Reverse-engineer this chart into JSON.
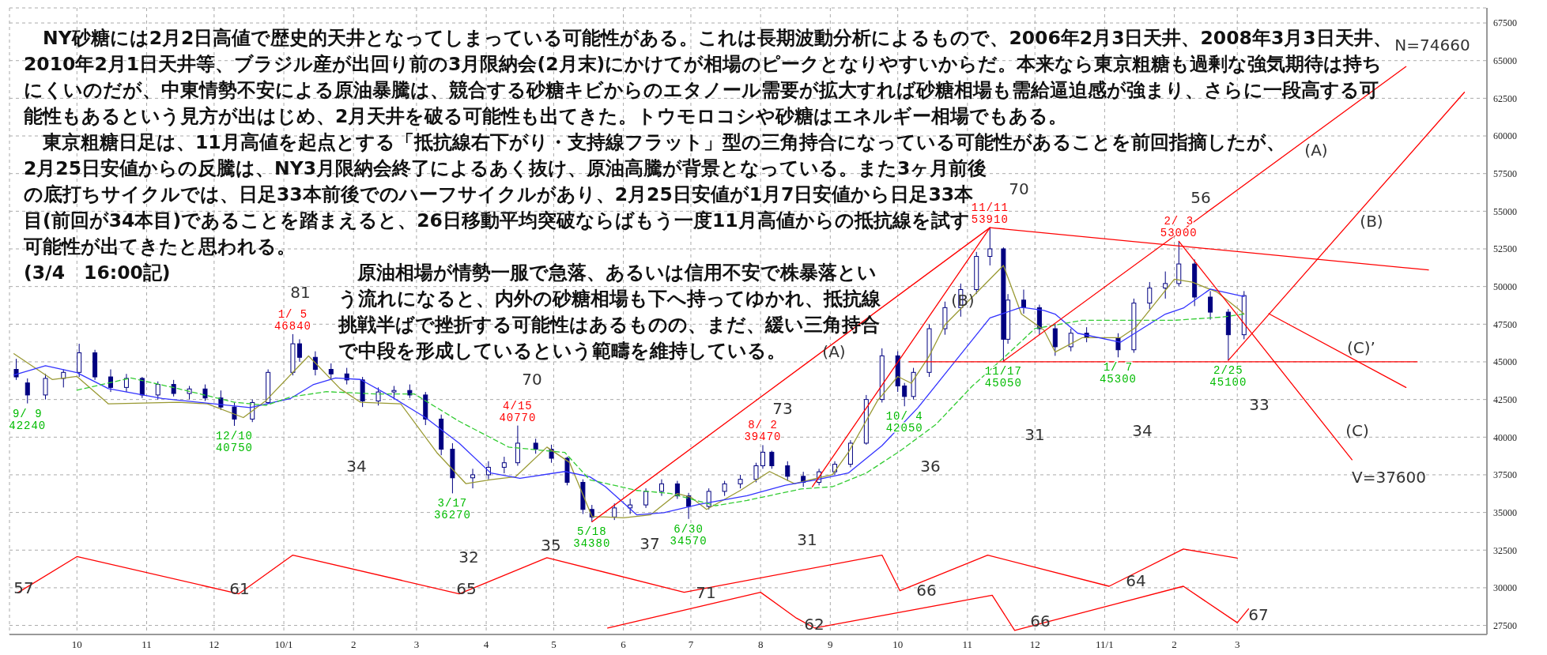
{
  "chart_data": {
    "type": "candlestick",
    "color": "#000080",
    "x": [
      "2009-09-04",
      "2009-09-09",
      "2009-09-17",
      "2009-09-25",
      "2009-10-02",
      "2009-10-09",
      "2009-10-16",
      "2009-10-23",
      "2009-10-30",
      "2009-11-06",
      "2009-11-13",
      "2009-11-20",
      "2009-11-27",
      "2009-12-04",
      "2009-12-10",
      "2009-12-18",
      "2009-12-25",
      "2010-01-05",
      "2010-01-08",
      "2010-01-15",
      "2010-01-22",
      "2010-01-29",
      "2010-02-05",
      "2010-02-12",
      "2010-02-19",
      "2010-02-26",
      "2010-03-05",
      "2010-03-12",
      "2010-03-17",
      "2010-03-26",
      "2010-04-02",
      "2010-04-09",
      "2010-04-15",
      "2010-04-23",
      "2010-04-30",
      "2010-05-07",
      "2010-05-14",
      "2010-05-18",
      "2010-05-28",
      "2010-06-04",
      "2010-06-11",
      "2010-06-18",
      "2010-06-25",
      "2010-06-30",
      "2010-07-09",
      "2010-07-16",
      "2010-07-23",
      "2010-07-30",
      "2010-08-02",
      "2010-08-06",
      "2010-08-13",
      "2010-08-20",
      "2010-08-27",
      "2010-09-03",
      "2010-09-10",
      "2010-09-17",
      "2010-09-24",
      "2010-10-01",
      "2010-10-04",
      "2010-10-08",
      "2010-10-15",
      "2010-10-22",
      "2010-10-29",
      "2010-11-05",
      "2010-11-11",
      "2010-11-17",
      "2010-11-19",
      "2010-11-26",
      "2010-12-03",
      "2010-12-10",
      "2010-12-17",
      "2010-12-24",
      "2011-01-07",
      "2011-01-14",
      "2011-01-21",
      "2011-01-28",
      "2011-02-03",
      "2011-02-10",
      "2011-02-17",
      "2011-02-25",
      "2011-03-04"
    ],
    "ohlc": [
      [
        44500,
        45200,
        43800,
        44000
      ],
      [
        43600,
        43900,
        42240,
        42800
      ],
      [
        42800,
        44200,
        42500,
        43900
      ],
      [
        43900,
        44500,
        43300,
        44300
      ],
      [
        44300,
        46200,
        44000,
        45600
      ],
      [
        45600,
        45800,
        43800,
        44000
      ],
      [
        44000,
        44500,
        43000,
        43300
      ],
      [
        43300,
        44200,
        43000,
        43900
      ],
      [
        43900,
        44000,
        42600,
        42800
      ],
      [
        42800,
        43700,
        42500,
        43500
      ],
      [
        43500,
        43800,
        42700,
        42900
      ],
      [
        42900,
        43400,
        42500,
        43200
      ],
      [
        43200,
        43500,
        42400,
        42600
      ],
      [
        42600,
        43100,
        41800,
        42000
      ],
      [
        42000,
        42300,
        40750,
        41200
      ],
      [
        41200,
        42500,
        41000,
        42300
      ],
      [
        42300,
        44500,
        42200,
        44300
      ],
      [
        44300,
        46840,
        44100,
        46200
      ],
      [
        46200,
        46500,
        45000,
        45300
      ],
      [
        45300,
        45700,
        44100,
        44500
      ],
      [
        44500,
        44900,
        43800,
        44200
      ],
      [
        44200,
        44600,
        43500,
        43800
      ],
      [
        43800,
        44000,
        42000,
        42400
      ],
      [
        42400,
        43300,
        42100,
        43000
      ],
      [
        43000,
        43400,
        42500,
        43100
      ],
      [
        43100,
        43500,
        42600,
        42800
      ],
      [
        42800,
        43000,
        40800,
        41200
      ],
      [
        41200,
        41500,
        38800,
        39200
      ],
      [
        39200,
        39600,
        36270,
        37300
      ],
      [
        37300,
        37900,
        36600,
        37500
      ],
      [
        37500,
        38400,
        37200,
        38000
      ],
      [
        38000,
        38700,
        37600,
        38300
      ],
      [
        38300,
        40770,
        38100,
        39600
      ],
      [
        39600,
        39900,
        38900,
        39200
      ],
      [
        39200,
        39500,
        38300,
        38600
      ],
      [
        38600,
        38700,
        36800,
        37000
      ],
      [
        37000,
        37200,
        34900,
        35200
      ],
      [
        35200,
        35500,
        34380,
        34700
      ],
      [
        34700,
        35600,
        34500,
        35300
      ],
      [
        35300,
        35900,
        34900,
        35500
      ],
      [
        35500,
        36600,
        35300,
        36400
      ],
      [
        36400,
        37200,
        36100,
        36900
      ],
      [
        36900,
        37100,
        35900,
        36100
      ],
      [
        36100,
        36300,
        34570,
        35400
      ],
      [
        35400,
        36600,
        35200,
        36400
      ],
      [
        36400,
        37100,
        36100,
        36900
      ],
      [
        36900,
        37500,
        36600,
        37200
      ],
      [
        37200,
        38300,
        37000,
        38100
      ],
      [
        38100,
        39470,
        37900,
        39000
      ],
      [
        39000,
        39100,
        37900,
        38100
      ],
      [
        38100,
        38400,
        37100,
        37400
      ],
      [
        37400,
        37700,
        36700,
        37000
      ],
      [
        37000,
        37900,
        36800,
        37700
      ],
      [
        37700,
        38400,
        37500,
        38200
      ],
      [
        38200,
        39800,
        38000,
        39600
      ],
      [
        39600,
        42800,
        39500,
        42500
      ],
      [
        42500,
        45900,
        42300,
        45400
      ],
      [
        45400,
        45700,
        43000,
        43400
      ],
      [
        43400,
        43600,
        42050,
        42700
      ],
      [
        42700,
        44600,
        42500,
        44300
      ],
      [
        44300,
        47500,
        44000,
        47200
      ],
      [
        47200,
        49000,
        46800,
        48600
      ],
      [
        48600,
        50200,
        48000,
        49800
      ],
      [
        49800,
        52300,
        49500,
        52000
      ],
      [
        52000,
        53910,
        51400,
        52500
      ],
      [
        52500,
        52600,
        45050,
        46500
      ],
      [
        46500,
        49500,
        46200,
        49100
      ],
      [
        49100,
        49800,
        48200,
        48600
      ],
      [
        48600,
        48800,
        46800,
        47200
      ],
      [
        47200,
        47500,
        45400,
        46000
      ],
      [
        46000,
        47200,
        45700,
        46900
      ],
      [
        46900,
        47300,
        46300,
        46600
      ],
      [
        46600,
        46900,
        45300,
        45800
      ],
      [
        45800,
        49200,
        45600,
        48900
      ],
      [
        48900,
        50300,
        48500,
        49900
      ],
      [
        49900,
        51000,
        49200,
        50200
      ],
      [
        50200,
        53000,
        50000,
        51500
      ],
      [
        51500,
        51800,
        48700,
        49300
      ],
      [
        49300,
        49700,
        47800,
        48300
      ],
      [
        48300,
        48500,
        45100,
        46800
      ],
      [
        46800,
        49700,
        46500,
        49400
      ]
    ],
    "series": [
      {
        "type": "line",
        "color": "#999933",
        "x": [
          "2009-09-03",
          "2009-09-20",
          "2009-10-01",
          "2009-10-15",
          "2009-11-15",
          "2009-11-28",
          "2009-12-14",
          "2009-12-24",
          "2010-01-12",
          "2010-01-26",
          "2010-02-04",
          "2010-02-22",
          "2010-03-10",
          "2010-03-23",
          "2010-04-03",
          "2010-04-14",
          "2010-04-28",
          "2010-05-08",
          "2010-05-18",
          "2010-06-01",
          "2010-06-13",
          "2010-06-25",
          "2010-07-01",
          "2010-07-08",
          "2010-07-23",
          "2010-08-05",
          "2010-08-16",
          "2010-09-02",
          "2010-09-09",
          "2010-09-22",
          "2010-10-01",
          "2010-10-07",
          "2010-10-15",
          "2010-10-22",
          "2010-11-17",
          "2010-11-25",
          "2010-12-05",
          "2010-12-10",
          "2010-12-22",
          "2011-01-08",
          "2011-01-15",
          "2011-02-01",
          "2011-02-09",
          "2011-02-20",
          "2011-03-01",
          "2011-03-04"
        ],
        "values": [
          45540,
          43830,
          44030,
          42210,
          42320,
          42210,
          41300,
          42420,
          45390,
          43220,
          42320,
          42210,
          38980,
          36910,
          37170,
          37370,
          39340,
          38330,
          34740,
          34640,
          34840,
          36260,
          36010,
          35200,
          36460,
          37720,
          36910,
          37520,
          38980,
          42420,
          44030,
          43580,
          45390,
          47460,
          51400,
          48170,
          47110,
          45650,
          46600,
          46600,
          47310,
          50490,
          50290,
          49630,
          48570,
          48170
        ]
      },
      {
        "type": "line",
        "color": "#3333ff",
        "x": [
          "2009-09-03",
          "2009-09-17",
          "2009-10-01",
          "2009-10-15",
          "2009-11-08",
          "2009-12-01",
          "2009-12-17",
          "2010-01-04",
          "2010-01-14",
          "2010-01-24",
          "2010-02-04",
          "2010-02-18",
          "2010-03-05",
          "2010-03-20",
          "2010-04-03",
          "2010-04-16",
          "2010-05-06",
          "2010-05-17",
          "2010-05-24",
          "2010-06-07",
          "2010-06-19",
          "2010-07-05",
          "2010-07-26",
          "2010-08-12",
          "2010-08-26",
          "2010-09-09",
          "2010-09-24",
          "2010-10-10",
          "2010-10-26",
          "2010-11-11",
          "2010-11-25",
          "2010-12-05",
          "2010-12-10",
          "2010-12-20",
          "2011-01-08",
          "2011-01-28",
          "2011-02-05",
          "2011-02-17",
          "2011-03-04"
        ],
        "values": [
          44130,
          44740,
          44280,
          43220,
          42570,
          42210,
          41960,
          42570,
          43480,
          43930,
          43830,
          42670,
          41300,
          39590,
          37620,
          37270,
          37720,
          37370,
          36710,
          34840,
          34990,
          35550,
          36110,
          36810,
          37170,
          37620,
          39440,
          41960,
          44940,
          47920,
          48620,
          48420,
          48170,
          46900,
          46300,
          48170,
          48570,
          49830,
          49330
        ]
      },
      {
        "type": "line",
        "color": "#33cc33",
        "line_style": "dashed",
        "x": [
          "2009-10-01",
          "2009-10-25",
          "2009-11-15",
          "2009-12-10",
          "2009-12-24",
          "2010-01-04",
          "2010-01-20",
          "2010-02-11",
          "2010-02-28",
          "2010-03-20",
          "2010-04-11",
          "2010-05-06",
          "2010-05-17",
          "2010-06-07",
          "2010-06-22",
          "2010-07-12",
          "2010-07-26",
          "2010-08-19",
          "2010-09-02",
          "2010-09-17",
          "2010-10-02",
          "2010-10-18",
          "2010-11-03",
          "2010-11-18",
          "2010-12-01",
          "2010-12-22",
          "2011-02-01",
          "2011-02-22",
          "2011-03-04"
        ],
        "values": [
          43120,
          43930,
          43220,
          42320,
          42110,
          42670,
          43020,
          42870,
          42870,
          41050,
          39340,
          38980,
          37170,
          36460,
          36260,
          35450,
          35800,
          36560,
          36710,
          37620,
          39080,
          40850,
          43370,
          45390,
          47210,
          47760,
          47760,
          47970,
          48170
        ]
      },
      {
        "type": "line",
        "color": "#ff0000",
        "x": [
          "2010-05-18",
          "2010-11-11"
        ],
        "values": [
          34380,
          53910
        ]
      },
      {
        "type": "line",
        "color": "#ff0000",
        "x": [
          "2010-08-24",
          "2010-11-11"
        ],
        "values": [
          36700,
          53910
        ]
      },
      {
        "type": "line",
        "color": "#ff0000",
        "x": [
          "2010-11-11",
          "2011-05-25"
        ],
        "values": [
          53910,
          51100
        ]
      },
      {
        "type": "line",
        "color": "#ff0000",
        "x": [
          "2010-10-06",
          "2011-05-20"
        ],
        "values": [
          45000,
          45000
        ]
      },
      {
        "type": "line",
        "color": "#ff0000",
        "x": [
          "2010-11-17",
          "2011-05-15"
        ],
        "values": [
          45050,
          64600
        ]
      },
      {
        "type": "line",
        "color": "#ff0000",
        "x": [
          "2011-02-25",
          "2011-06-10"
        ],
        "values": [
          45100,
          62900
        ]
      },
      {
        "type": "line",
        "color": "#ff0000",
        "x": [
          "2011-02-03",
          "2011-04-21"
        ],
        "values": [
          53000,
          38500
        ]
      },
      {
        "type": "line",
        "color": "#ff0000",
        "x": [
          "2011-03-15",
          "2011-05-15"
        ],
        "values": [
          48200,
          43300
        ]
      },
      {
        "type": "line",
        "color": "#ff0000",
        "x": [
          "2009-09-05",
          "2009-10-01",
          "2009-12-12",
          "2010-01-05",
          "2010-03-20",
          "2010-04-28",
          "2010-06-28",
          "2010-09-24",
          "2010-10-02",
          "2010-11-10",
          "2011-01-03",
          "2011-02-05",
          "2011-03-01"
        ],
        "values": [
          29700,
          32070,
          29600,
          32170,
          29600,
          32000,
          29700,
          32170,
          29800,
          32170,
          30100,
          32570,
          31970
        ]
      },
      {
        "type": "line",
        "color": "#ff0000",
        "x": [
          "2010-05-25",
          "2010-08-01",
          "2010-08-17",
          "2010-08-25",
          "2010-11-12",
          "2010-11-22",
          "2011-02-05",
          "2011-03-01",
          "2011-03-06"
        ],
        "values": [
          27330,
          29700,
          27980,
          27330,
          29500,
          27170,
          30100,
          27680,
          28600
        ]
      }
    ],
    "xlim": [
      "2009-09-01",
      "2011-06-20"
    ],
    "xticks": [
      {
        "value": "2009-10-01",
        "label": "10"
      },
      {
        "value": "2009-11-01",
        "label": "11"
      },
      {
        "value": "2009-12-01",
        "label": "12"
      },
      {
        "value": "2010-01-01",
        "label": "10/1"
      },
      {
        "value": "2010-02-01",
        "label": "2"
      },
      {
        "value": "2010-03-01",
        "label": "3"
      },
      {
        "value": "2010-04-01",
        "label": "4"
      },
      {
        "value": "2010-05-01",
        "label": "5"
      },
      {
        "value": "2010-06-01",
        "label": "6"
      },
      {
        "value": "2010-07-01",
        "label": "7"
      },
      {
        "value": "2010-08-01",
        "label": "8"
      },
      {
        "value": "2010-09-01",
        "label": "9"
      },
      {
        "value": "2010-10-01",
        "label": "10"
      },
      {
        "value": "2010-11-01",
        "label": "11"
      },
      {
        "value": "2010-12-01",
        "label": "12"
      },
      {
        "value": "2011-01-01",
        "label": "11/1"
      },
      {
        "value": "2011-02-01",
        "label": "2"
      },
      {
        "value": "2011-03-01",
        "label": "3"
      }
    ],
    "ylim": [
      26900,
      68500
    ],
    "yticks": [
      27500,
      30000,
      32500,
      35000,
      37500,
      40000,
      42500,
      45000,
      47500,
      50000,
      52500,
      55000,
      57500,
      60000,
      62500,
      65000,
      67500
    ],
    "grid": true,
    "annotations": [
      "　NY砂糖には2月2日高値で歴史的天井となってしまっている可能性がある。これは長期波動分析によるもので、2006年2月3日天井、2008年3月3日天井、2010年2月1日天井等、ブラジル産が出回り前の3月限納会(2月末)にかけてが相場のピークとなりやすいからだ。本来なら東京粗糖も過剰な強気期待は持ちにくいのだが、中東情勢不安による原油暴騰は、競合する砂糖キビからのエタノール需要が拡大すれば砂糖相場も需給逼迫感が強まり、さらに一段高する可能性もあるという見方が出はじめ、2月天井を破る可能性も出てきた。トウモロコシや砂糖はエネルギー相場でもある。",
      "　東京粗糖日足は、11月高値を起点とする「抵抗線右下がり・支持線フラット」型の三角持合になっている可能性があることを前回指摘したが、",
      "2月25日安値からの反騰は、NY3月限納会終了によるあく抜け、原油高騰が背景となっている。また3ヶ月前後の底打ちサイクルでは、日足33本前後でのハーフサイクルがあり、2月25日安値が1月7日安値から日足33本目(前回が34本目)であることを踏まえると、26日移動平均突破ならばもう一度11月高値からの抵抗線を試す可能性が出てきたと思われる。",
      "(3/4　16:00記)",
      "　原油相場が情勢一服で急落、あるいは信用不安で株暴落という流れになると、内外の砂糖相場も下へ持ってゆかれ、抵抗線挑戦半ばで挫折する可能性はあるものの、まだ、緩い三角持合で中段を形成しているという範疇を維持している。",
      "81",
      "70",
      "34",
      "32",
      "35",
      "37",
      "31",
      "73",
      "36",
      "31",
      "70",
      "56",
      "34",
      "33",
      "57",
      "61",
      "65",
      "71",
      "66",
      "64",
      "62",
      "66",
      "67",
      "(A)",
      "(B)",
      "(A)",
      "(B)",
      "(C)",
      "(C)’",
      "N=74660",
      "V=37600",
      {
        "text": "9/ 9\n42240",
        "x": "2009-09-09",
        "y": 42240
      },
      {
        "text": "12/10\n40750",
        "x": "2009-12-10",
        "y": 40750
      },
      {
        "text": "1/ 5\n46840",
        "x": "2010-01-05",
        "y": 46840
      },
      {
        "text": "3/17\n36270",
        "x": "2010-03-17",
        "y": 36270
      },
      {
        "text": "4/15\n40770",
        "x": "2010-04-15",
        "y": 40770
      },
      {
        "text": "5/18\n34380",
        "x": "2010-05-18",
        "y": 34380
      },
      {
        "text": "6/30\n34570",
        "x": "2010-06-30",
        "y": 34570
      },
      {
        "text": "8/ 2\n39470",
        "x": "2010-08-02",
        "y": 39470
      },
      {
        "text": "10/ 4\n42050",
        "x": "2010-10-04",
        "y": 42050
      },
      {
        "text": "11/11\n53910",
        "x": "2010-11-11",
        "y": 53910
      },
      {
        "text": "11/17\n45050",
        "x": "2010-11-17",
        "y": 45050
      },
      {
        "text": "1/ 7\n45300",
        "x": "2011-01-07",
        "y": 45300
      },
      {
        "text": "2/ 3\n53000",
        "x": "2011-02-03",
        "y": 53000
      },
      {
        "text": "2/25\n45100",
        "x": "2011-02-25",
        "y": 45100
      }
    ]
  }
}
